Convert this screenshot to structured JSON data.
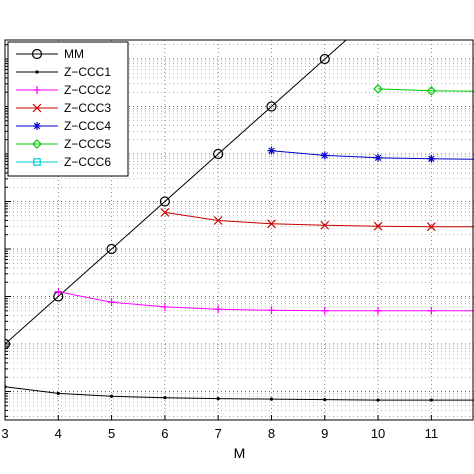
{
  "chart_data": {
    "type": "line",
    "title": "",
    "xlabel": "M",
    "ylabel": "",
    "xlim": [
      3,
      11.8
    ],
    "ylim": [
      -1.6,
      6.4
    ],
    "y_scale": "log",
    "grid": true,
    "legend_position": "top-left",
    "x_ticks": [
      3,
      4,
      5,
      6,
      7,
      8,
      9,
      10,
      11
    ],
    "series": [
      {
        "name": "MM",
        "color": "#000000",
        "marker": "circle",
        "x": [
          3,
          4,
          5,
          6,
          7,
          8,
          9,
          10,
          11,
          11.8
        ],
        "y": [
          0,
          1.0,
          2.0,
          3.0,
          4.0,
          5.0,
          6.0,
          7.0,
          8.0,
          8.8
        ]
      },
      {
        "name": "Z−CCC1",
        "color": "#000000",
        "marker": "dot",
        "x": [
          3,
          4,
          5,
          6,
          7,
          8,
          9,
          10,
          11,
          11.8
        ],
        "y": [
          -0.9,
          -1.04,
          -1.1,
          -1.13,
          -1.15,
          -1.16,
          -1.17,
          -1.18,
          -1.18,
          -1.18
        ]
      },
      {
        "name": "Z−CCC2",
        "color": "#ff00ff",
        "marker": "plus",
        "x": [
          4,
          5,
          6,
          7,
          8,
          9,
          10,
          11,
          11.8
        ],
        "y": [
          1.1,
          0.88,
          0.78,
          0.73,
          0.71,
          0.7,
          0.7,
          0.7,
          0.7
        ]
      },
      {
        "name": "Z−CCC3",
        "color": "#cc0000",
        "marker": "x",
        "x": [
          6,
          7,
          8,
          9,
          10,
          11,
          11.8
        ],
        "y": [
          2.77,
          2.6,
          2.53,
          2.5,
          2.48,
          2.47,
          2.47
        ]
      },
      {
        "name": "Z−CCC4",
        "color": "#0000cc",
        "marker": "star",
        "x": [
          8,
          9,
          10,
          11,
          11.8
        ],
        "y": [
          4.07,
          3.97,
          3.92,
          3.9,
          3.89
        ]
      },
      {
        "name": "Z−CCC5",
        "color": "#00cc00",
        "marker": "diamond",
        "x": [
          10,
          11,
          11.8
        ],
        "y": [
          5.37,
          5.33,
          5.32
        ]
      },
      {
        "name": "Z−CCC6",
        "color": "#00cccc",
        "marker": "square",
        "x": [],
        "y": []
      }
    ]
  }
}
